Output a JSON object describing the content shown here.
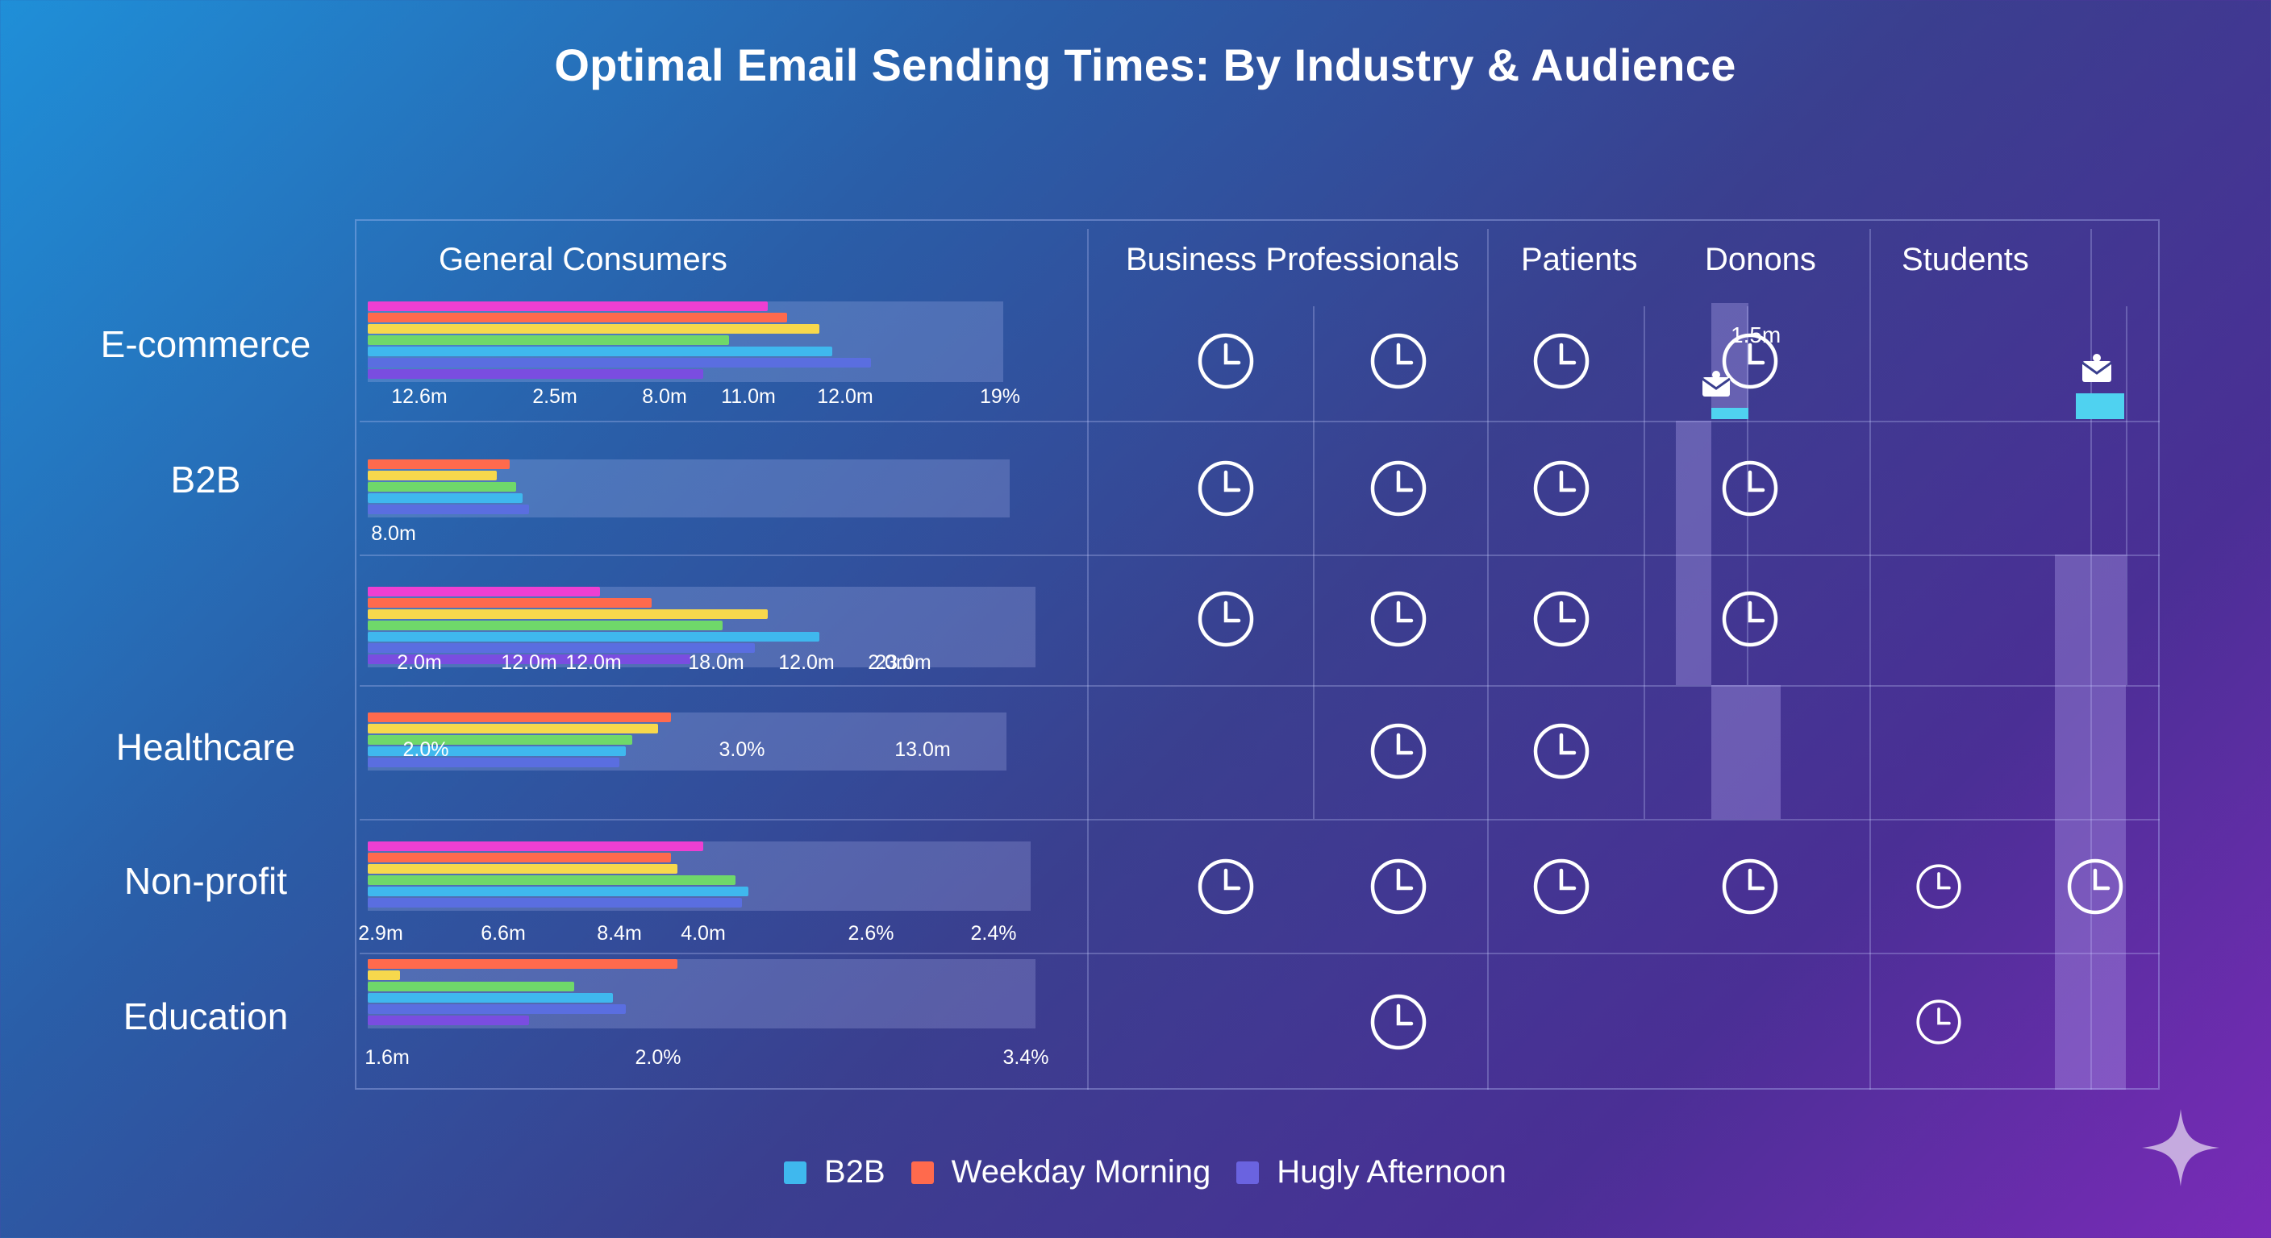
{
  "title": "Optimal Email Sending Times: By Industry & Audience",
  "columns": [
    "General Consumers",
    "Business Professionals",
    "Patients",
    "Donons",
    "Students"
  ],
  "rows": [
    "E-commerce",
    "B2B",
    "",
    "Healthcare",
    "Non-profit",
    "Education"
  ],
  "legend": [
    {
      "label": "B2B",
      "color": "#3fb8ee"
    },
    {
      "label": "Weekday Morning",
      "color": "#ff6a4d"
    },
    {
      "label": "Hugly Afternoon",
      "color": "#6a63e0"
    }
  ],
  "extra_labels": {
    "donors_value": "1.5m"
  },
  "chart_data": {
    "type": "bar",
    "title": "Optimal Email Sending Times: By Industry & Audience",
    "value_scale_max": 100,
    "series_colors": [
      "#ee3fd2",
      "#ff6a4d",
      "#f7d84c",
      "#6fd86a",
      "#3fb8ee",
      "#5a6ee0",
      "#7a4de0"
    ],
    "rows": [
      {
        "name": "E-commerce",
        "bars": [
          62,
          65,
          70,
          56,
          72,
          78,
          52
        ],
        "tick_labels": [
          "12.6m",
          "2.5m",
          "8.0m",
          "11.0m",
          "12.0m",
          "19%"
        ],
        "tick_values": [
          8,
          29,
          46,
          59,
          74,
          98
        ]
      },
      {
        "name": "B2B",
        "bars": [
          22,
          20,
          23,
          24,
          25
        ],
        "tick_labels": [
          "8.0m"
        ],
        "tick_values": [
          4
        ]
      },
      {
        "name": "",
        "bars": [
          36,
          44,
          62,
          55,
          70,
          60,
          50
        ],
        "tick_labels": [
          "2.0m",
          "12.0m",
          "12.0m",
          "18.0m",
          "12.0m",
          "2.0m",
          "23.0m"
        ],
        "tick_values": [
          8,
          25,
          35,
          54,
          68,
          81,
          83
        ]
      },
      {
        "name": "Healthcare",
        "bars": [
          47,
          45,
          41,
          40,
          39
        ],
        "tick_labels": [
          "2.0%",
          "3.0%",
          "13.0m"
        ],
        "tick_values": [
          9,
          58,
          86
        ]
      },
      {
        "name": "Non-profit",
        "bars": [
          52,
          47,
          48,
          57,
          59,
          58
        ],
        "tick_labels": [
          "2.9m",
          "6.6m",
          "8.4m",
          "4.0m",
          "2.6%",
          "2.4%"
        ],
        "tick_values": [
          2,
          21,
          39,
          52,
          78,
          97
        ]
      },
      {
        "name": "Education",
        "bars": [
          48,
          5,
          32,
          38,
          40,
          25
        ],
        "tick_labels": [
          "1.6m",
          "2.0%",
          "3.4%"
        ],
        "tick_values": [
          3,
          45,
          102
        ]
      }
    ],
    "clock_cells": [
      [
        1,
        1,
        1,
        0,
        1,
        0
      ],
      [
        1,
        1,
        1,
        1,
        1,
        1
      ],
      [
        1,
        1,
        1,
        1,
        1,
        0
      ],
      [
        1,
        1,
        1,
        0,
        1,
        0
      ],
      [
        0,
        0,
        0,
        0,
        1,
        1
      ],
      [
        0,
        0,
        0,
        0,
        1,
        0
      ]
    ]
  }
}
